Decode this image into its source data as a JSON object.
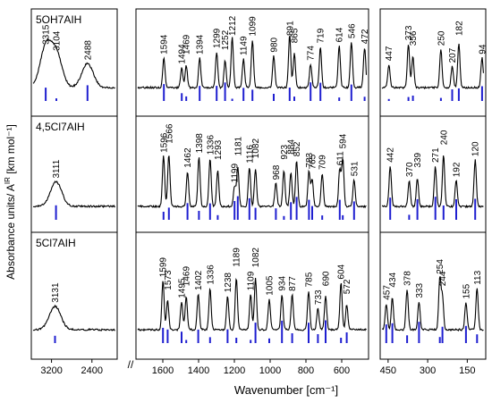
{
  "chart_data": {
    "type": "line",
    "xlabel": "Wavenumber [cm⁻¹]",
    "ylabel": "Absorbance units/ A",
    "ylabel_sup": "IR",
    "ylabel_unit": " [km mol⁻¹]",
    "axis_break": "//",
    "x_segments": [
      {
        "id": "high",
        "xlim": [
          3600,
          1900
        ],
        "ticks": [
          3200,
          2400
        ]
      },
      {
        "id": "mid",
        "xlim": [
          1750,
          450
        ],
        "ticks": [
          1600,
          1400,
          1200,
          1000,
          800,
          600
        ]
      },
      {
        "id": "low",
        "xlim": [
          480,
          80
        ],
        "ticks": [
          450,
          300,
          150
        ]
      }
    ],
    "colors": {
      "experimental": "#000000",
      "calculated": "#1f1fd0"
    },
    "panels": [
      {
        "name": "5OH7AIH",
        "peaks": [
          {
            "x": 3315,
            "label": "3315"
          },
          {
            "x": 3104,
            "label": "3104"
          },
          {
            "x": 2488,
            "label": "2488"
          },
          {
            "x": 1594,
            "label": "1594"
          },
          {
            "x": 1469,
            "label": "1469"
          },
          {
            "x": 1494,
            "label": "1494"
          },
          {
            "x": 1394,
            "label": "1394"
          },
          {
            "x": 1299,
            "label": "1299"
          },
          {
            "x": 1252,
            "label": "1252"
          },
          {
            "x": 1212,
            "label": "1212"
          },
          {
            "x": 1149,
            "label": "1149"
          },
          {
            "x": 1099,
            "label": "1099"
          },
          {
            "x": 980,
            "label": "980"
          },
          {
            "x": 891,
            "label": "891"
          },
          {
            "x": 865,
            "label": "865"
          },
          {
            "x": 774,
            "label": "774"
          },
          {
            "x": 719,
            "label": "719"
          },
          {
            "x": 614,
            "label": "614"
          },
          {
            "x": 546,
            "label": "546"
          },
          {
            "x": 472,
            "label": "472"
          },
          {
            "x": 447,
            "label": "447"
          },
          {
            "x": 373,
            "label": "373"
          },
          {
            "x": 356,
            "label": "356"
          },
          {
            "x": 250,
            "label": "250"
          },
          {
            "x": 207,
            "label": "207"
          },
          {
            "x": 182,
            "label": "182"
          },
          {
            "x": 94,
            "label": "94"
          }
        ]
      },
      {
        "name": "4,5Cl7AIH",
        "peaks": [
          {
            "x": 3111,
            "label": "3111"
          },
          {
            "x": 1596,
            "label": "1596"
          },
          {
            "x": 1566,
            "label": "1566"
          },
          {
            "x": 1462,
            "label": "1462"
          },
          {
            "x": 1398,
            "label": "1398"
          },
          {
            "x": 1336,
            "label": "1336"
          },
          {
            "x": 1293,
            "label": "1293"
          },
          {
            "x": 1199,
            "label": "1199"
          },
          {
            "x": 1181,
            "label": "1181"
          },
          {
            "x": 1116,
            "label": "1116"
          },
          {
            "x": 1082,
            "label": "1082"
          },
          {
            "x": 968,
            "label": "968"
          },
          {
            "x": 923,
            "label": "923"
          },
          {
            "x": 884,
            "label": "884"
          },
          {
            "x": 852,
            "label": "852"
          },
          {
            "x": 783,
            "label": "783"
          },
          {
            "x": 765,
            "label": "765"
          },
          {
            "x": 709,
            "label": "709"
          },
          {
            "x": 611,
            "label": "611"
          },
          {
            "x": 594,
            "label": "594"
          },
          {
            "x": 531,
            "label": "531"
          },
          {
            "x": 442,
            "label": "442"
          },
          {
            "x": 370,
            "label": "370"
          },
          {
            "x": 339,
            "label": "339"
          },
          {
            "x": 271,
            "label": "271"
          },
          {
            "x": 240,
            "label": "240"
          },
          {
            "x": 192,
            "label": "192"
          },
          {
            "x": 120,
            "label": "120"
          }
        ]
      },
      {
        "name": "5Cl7AIH",
        "peaks": [
          {
            "x": 3131,
            "label": "3131"
          },
          {
            "x": 1599,
            "label": "1599"
          },
          {
            "x": 1573,
            "label": "1573"
          },
          {
            "x": 1495,
            "label": "1495"
          },
          {
            "x": 1469,
            "label": "1469"
          },
          {
            "x": 1402,
            "label": "1402"
          },
          {
            "x": 1336,
            "label": "1336"
          },
          {
            "x": 1238,
            "label": "1238"
          },
          {
            "x": 1189,
            "label": "1189"
          },
          {
            "x": 1109,
            "label": "1109"
          },
          {
            "x": 1082,
            "label": "1082"
          },
          {
            "x": 1005,
            "label": "1005"
          },
          {
            "x": 934,
            "label": "934"
          },
          {
            "x": 877,
            "label": "877"
          },
          {
            "x": 785,
            "label": "785"
          },
          {
            "x": 733,
            "label": "733"
          },
          {
            "x": 690,
            "label": "690"
          },
          {
            "x": 604,
            "label": "604"
          },
          {
            "x": 572,
            "label": "572"
          },
          {
            "x": 457,
            "label": "457"
          },
          {
            "x": 434,
            "label": "434"
          },
          {
            "x": 378,
            "label": "378"
          },
          {
            "x": 333,
            "label": "333"
          },
          {
            "x": 254,
            "label": "254"
          },
          {
            "x": 244,
            "label": "244"
          },
          {
            "x": 155,
            "label": "155"
          },
          {
            "x": 113,
            "label": "113"
          }
        ]
      }
    ]
  }
}
